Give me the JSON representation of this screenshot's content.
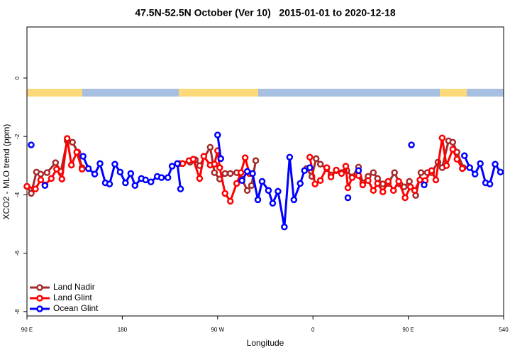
{
  "chart_data": {
    "type": "line",
    "title": "47.5N-52.5N October (Ver 10)   2015-01-01 to 2020-12-18",
    "x_label": "Longitude",
    "y_label": "XCO2 - MLO trend (ppm)",
    "xlim": [
      90,
      540
    ],
    "ylim": [
      -8.15,
      1.75
    ],
    "xticks": [
      {
        "value": 90,
        "label": "90 E"
      },
      180,
      {
        "value": 270,
        "label": "90 W"
      },
      {
        "value": 360,
        "label": "0"
      },
      {
        "value": 450,
        "label": "90 E"
      },
      540
    ],
    "yticks": [
      0,
      -2,
      -4,
      -6,
      -8
    ],
    "legend": "bottom-left",
    "series": [
      {
        "name": "Land Nadir",
        "color": "#a52a2a",
        "x": [
          90,
          94,
          99,
          103,
          109,
          117,
          122,
          128,
          133,
          138,
          142,
          null,
          234,
          244,
          249,
          253,
          263,
          267,
          272,
          277,
          282,
          288,
          293,
          298,
          302,
          306,
          null,
          354,
          359,
          363,
          367,
          373,
          377,
          382,
          387,
          392,
          397,
          403,
          407,
          412,
          417,
          421,
          426,
          431,
          437,
          442,
          446,
          451,
          457,
          462,
          468,
          472,
          478,
          482,
          488,
          492,
          496,
          502
        ],
        "values": [
          -3.71,
          -3.95,
          -3.22,
          -3.29,
          -3.24,
          -2.9,
          -3.2,
          -2.15,
          -2.2,
          -2.54,
          -3.07,
          null,
          -2.93,
          -2.88,
          -2.8,
          -3.0,
          -2.37,
          -3.24,
          -3.46,
          -3.27,
          -3.27,
          -3.24,
          -3.46,
          -3.85,
          -3.68,
          -2.83,
          null,
          -3.1,
          -3.37,
          -2.76,
          -2.95,
          -3.1,
          -3.32,
          -3.17,
          -3.24,
          -3.17,
          -3.39,
          -3.05,
          -3.59,
          -3.37,
          -3.24,
          -3.44,
          -3.63,
          -3.61,
          -3.24,
          -3.63,
          -3.73,
          -3.54,
          -4.02,
          -3.24,
          -3.24,
          -3.24,
          -2.88,
          -3.07,
          -2.15,
          -2.2,
          -2.54,
          -3.07
        ]
      },
      {
        "name": "Land Glint",
        "color": "#ff0000",
        "x": [
          90,
          98,
          103,
          107,
          113,
          118,
          123,
          128,
          132,
          137,
          142,
          null,
          237,
          243,
          247,
          253,
          257,
          263,
          267,
          270,
          272,
          277,
          282,
          288,
          292,
          296,
          300,
          null,
          357,
          362,
          367,
          373,
          377,
          382,
          387,
          391,
          393,
          397,
          403,
          407,
          412,
          417,
          421,
          426,
          431,
          436,
          441,
          447,
          452,
          456,
          461,
          466,
          472,
          476,
          482,
          486,
          492,
          496,
          501
        ],
        "values": [
          -3.71,
          -3.8,
          -3.49,
          -3.66,
          -3.44,
          -3.12,
          -3.46,
          -2.07,
          -2.98,
          -2.54,
          -3.12,
          null,
          -2.93,
          -2.83,
          -2.78,
          -3.44,
          -2.68,
          -2.98,
          -2.95,
          -2.49,
          -3.07,
          -3.95,
          -4.22,
          -3.61,
          -3.24,
          -2.73,
          -3.27,
          null,
          -2.71,
          -3.63,
          -3.51,
          -3.07,
          -3.39,
          -3.15,
          -3.27,
          -3.02,
          -3.76,
          -3.41,
          -3.34,
          -3.66,
          -3.51,
          -3.85,
          -3.61,
          -3.9,
          -3.54,
          -3.85,
          -3.54,
          -4.1,
          -3.73,
          -3.85,
          -3.49,
          -3.51,
          -3.17,
          -3.49,
          -2.05,
          -3.0,
          -2.44,
          -2.78,
          -3.1
        ]
      },
      {
        "name": "Ocean Glint",
        "color": "#0000ff",
        "x": [
          94,
          null,
          107,
          null,
          143,
          148,
          154,
          159,
          164,
          168,
          173,
          178,
          183,
          188,
          192,
          198,
          202,
          207,
          213,
          217,
          223,
          227,
          232,
          235,
          null,
          270,
          273,
          null,
          293,
          298,
          303,
          308,
          312,
          318,
          322,
          327,
          333,
          338,
          342,
          348,
          352,
          357,
          null,
          393,
          null,
          403,
          null,
          453,
          null,
          465,
          null,
          503,
          508,
          513,
          518,
          523,
          527,
          532,
          537
        ],
        "values": [
          -2.29,
          null,
          -3.68,
          null,
          -2.68,
          -3.1,
          -3.29,
          -2.93,
          -3.59,
          -3.63,
          -2.95,
          -3.22,
          -3.59,
          -3.27,
          -3.68,
          -3.44,
          -3.49,
          -3.56,
          -3.37,
          -3.41,
          -3.41,
          -3.02,
          -2.93,
          -3.8,
          null,
          -1.95,
          -2.76,
          null,
          -3.51,
          -3.2,
          -3.27,
          -4.17,
          -3.54,
          -3.85,
          -4.29,
          -3.88,
          -5.1,
          -2.71,
          -4.17,
          -3.61,
          -3.17,
          -3.07,
          null,
          -4.1,
          null,
          -3.17,
          null,
          -2.29,
          null,
          -3.66,
          null,
          -2.66,
          -3.07,
          -3.29,
          -2.93,
          -3.59,
          -3.63,
          -2.95,
          -3.22
        ]
      }
    ]
  }
}
